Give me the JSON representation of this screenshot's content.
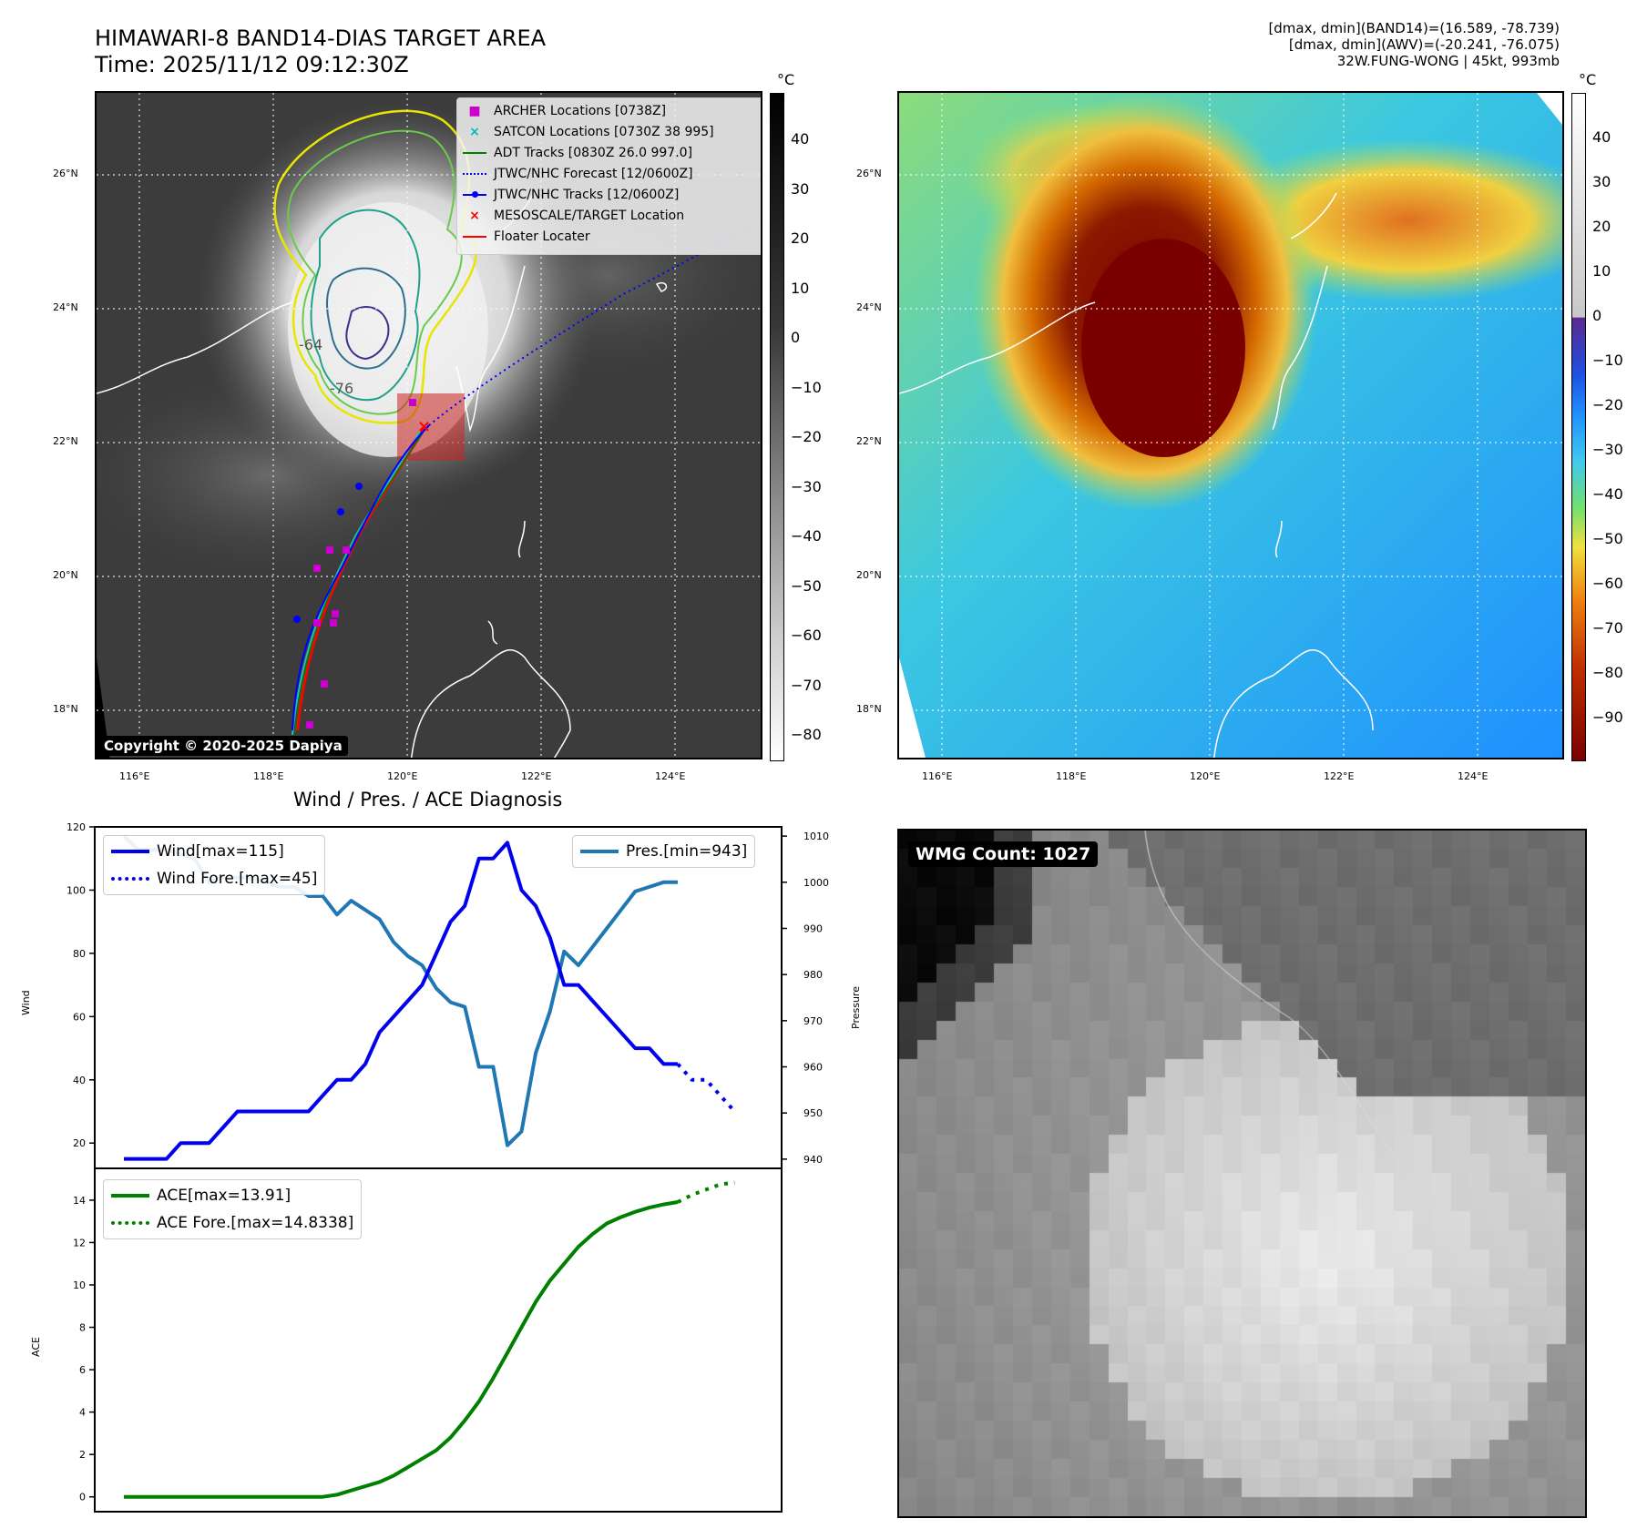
{
  "header": {
    "title_line1": "HIMAWARI-8 BAND14-DIAS TARGET AREA",
    "title_line2": "Time: 2025/11/12 09:12:30Z",
    "right_line1": "[dmax, dmin](BAND14)=(16.589, -78.739)",
    "right_line2": "[dmax, dmin](AWV)=(-20.241, -76.075)",
    "right_line3": "32W.FUNG-WONG | 45kt, 993mb"
  },
  "map_common": {
    "lat_labels": [
      "26°N",
      "24°N",
      "22°N",
      "20°N",
      "18°N"
    ],
    "lon_labels": [
      "116°E",
      "118°E",
      "120°E",
      "122°E",
      "124°E"
    ]
  },
  "map_left": {
    "copyright": "Copyright © 2020-2025 Dapiya",
    "contour_labels": [
      "-64",
      "-76"
    ],
    "legend": [
      {
        "label": "ARCHER Locations [0738Z]",
        "color": "#cc00cc"
      },
      {
        "label": "SATCON Locations [0730Z 38 995]",
        "color": "#00bbbb"
      },
      {
        "label": "ADT Tracks [0830Z 26.0 997.0]",
        "color": "#008000"
      },
      {
        "label": "JTWC/NHC Forecast [12/0600Z]",
        "color": "#0000ff"
      },
      {
        "label": "JTWC/NHC Tracks [12/0600Z]",
        "color": "#0000ff"
      },
      {
        "label": "MESOSCALE/TARGET Location",
        "color": "#ff0000"
      },
      {
        "label": "Floater Locater",
        "color": "#ff0000"
      }
    ],
    "colorbar": {
      "unit": "°C",
      "ticks": [
        "40",
        "30",
        "20",
        "10",
        "0",
        "−10",
        "−20",
        "−30",
        "−40",
        "−50",
        "−60",
        "−70",
        "−80"
      ]
    }
  },
  "map_right": {
    "colorbar": {
      "unit": "°C",
      "ticks": [
        "40",
        "30",
        "20",
        "10",
        "0",
        "−10",
        "−20",
        "−30",
        "−40",
        "−50",
        "−60",
        "−70",
        "−80",
        "−90"
      ]
    }
  },
  "wmg": {
    "label": "WMG Count: 1027"
  },
  "diag": {
    "title": "Wind / Pres. / ACE Diagnosis",
    "wind_ylabel": "Wind",
    "pres_ylabel": "Pressure",
    "ace_ylabel": "ACE",
    "legend_wind": "Wind[max=115]",
    "legend_wind_fore": "Wind Fore.[max=45]",
    "legend_pres": "Pres.[min=943]",
    "legend_ace": "ACE[max=13.91]",
    "legend_ace_fore": "ACE Fore.[max=14.8338]",
    "wind_ticks": [
      "120",
      "100",
      "80",
      "60",
      "40",
      "20"
    ],
    "pres_ticks": [
      "1010",
      "1000",
      "990",
      "980",
      "970",
      "960",
      "950",
      "940"
    ],
    "ace_ticks": [
      "14",
      "12",
      "10",
      "8",
      "6",
      "4",
      "2",
      "0"
    ]
  },
  "chart_data": [
    {
      "type": "line",
      "title": "Wind / Pres. / ACE Diagnosis",
      "ylabel": "Wind",
      "ylim": [
        12,
        120
      ],
      "series": [
        {
          "name": "Wind[max=115]",
          "color": "#0000ee",
          "values": [
            15,
            15,
            15,
            15,
            20,
            20,
            20,
            25,
            30,
            30,
            30,
            30,
            30,
            30,
            35,
            40,
            40,
            45,
            55,
            60,
            65,
            70,
            80,
            90,
            95,
            110,
            110,
            115,
            100,
            95,
            85,
            70,
            70,
            65,
            60,
            55,
            50,
            50,
            45,
            45
          ]
        },
        {
          "name": "Wind Fore.[max=45]",
          "color": "#0000ee",
          "dashed": true,
          "start": 39,
          "values": [
            45,
            40,
            40,
            35,
            30
          ]
        }
      ]
    },
    {
      "type": "line",
      "ylabel": "Pressure",
      "ylim": [
        938,
        1012
      ],
      "series": [
        {
          "name": "Pres.[min=943]",
          "color": "#1f77b4",
          "values": [
            1010,
            1007,
            1007,
            1007,
            1006,
            1005,
            1000,
            1001,
            1001,
            1001,
            1000,
            999,
            999,
            997,
            997,
            993,
            996,
            994,
            992,
            987,
            984,
            982,
            977,
            974,
            973,
            960,
            960,
            943,
            946,
            963,
            972,
            985,
            982,
            986,
            990,
            994,
            998,
            999,
            1000,
            1000
          ]
        }
      ]
    },
    {
      "type": "line",
      "ylabel": "ACE",
      "ylim": [
        -0.7,
        15.5
      ],
      "series": [
        {
          "name": "ACE[max=13.91]",
          "color": "#008000",
          "values": [
            0,
            0,
            0,
            0,
            0,
            0,
            0,
            0,
            0,
            0,
            0,
            0,
            0,
            0,
            0,
            0.1,
            0.3,
            0.5,
            0.7,
            1.0,
            1.4,
            1.8,
            2.2,
            2.8,
            3.6,
            4.5,
            5.6,
            6.8,
            8.0,
            9.2,
            10.2,
            11.0,
            11.8,
            12.4,
            12.9,
            13.2,
            13.45,
            13.65,
            13.8,
            13.91
          ]
        },
        {
          "name": "ACE Fore.[max=14.8338]",
          "color": "#008000",
          "dashed": true,
          "start": 39,
          "values": [
            13.91,
            14.25,
            14.5,
            14.75,
            14.8338
          ]
        }
      ]
    }
  ]
}
